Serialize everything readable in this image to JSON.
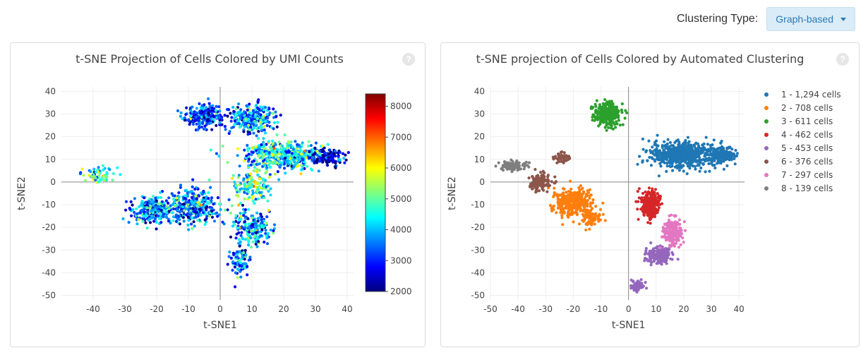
{
  "controls": {
    "clustering_label": "Clustering Type:",
    "clustering_value": "Graph-based"
  },
  "help_glyph": "?",
  "chart_data": [
    {
      "type": "scatter",
      "title": "t-SNE Projection of Cells Colored by UMI Counts",
      "xlabel": "t-SNE1",
      "ylabel": "t-SNE2",
      "xlim": [
        -50,
        42
      ],
      "ylim": [
        -52,
        42
      ],
      "xticks": [
        -40,
        -30,
        -20,
        -10,
        0,
        10,
        20,
        30,
        40
      ],
      "yticks": [
        40,
        30,
        20,
        10,
        0,
        -10,
        -20,
        -30,
        -40,
        -50
      ],
      "colorbar": {
        "min": 2000,
        "max": 8400,
        "ticks": [
          8000,
          7000,
          6000,
          5000,
          4000,
          3000,
          2000
        ],
        "colorscale": [
          "#00007f",
          "#0000ff",
          "#007fff",
          "#00ffff",
          "#7fff7f",
          "#ffff00",
          "#ff7f00",
          "#ff0000",
          "#7f0000"
        ]
      },
      "clusters": [
        {
          "x": 10,
          "y": 28,
          "sx": 6,
          "sy": 5,
          "n": 260,
          "umi": 3600
        },
        {
          "x": 20,
          "y": 12,
          "sx": 11,
          "sy": 5,
          "n": 500,
          "umi": 4200
        },
        {
          "x": 34,
          "y": 11,
          "sx": 4,
          "sy": 3,
          "n": 120,
          "umi": 2400
        },
        {
          "x": -8,
          "y": -11,
          "sx": 6,
          "sy": 6,
          "n": 300,
          "umi": 3500
        },
        {
          "x": -21,
          "y": -12,
          "sx": 6,
          "sy": 5,
          "n": 250,
          "umi": 3700
        },
        {
          "x": -5,
          "y": 29,
          "sx": 5,
          "sy": 4,
          "n": 240,
          "umi": 3300
        },
        {
          "x": -38,
          "y": 3,
          "sx": 4,
          "sy": 3,
          "n": 60,
          "umi": 4600
        },
        {
          "x": 10,
          "y": -2,
          "sx": 5,
          "sy": 6,
          "n": 150,
          "umi": 4800
        },
        {
          "x": 10,
          "y": -20,
          "sx": 5,
          "sy": 6,
          "n": 200,
          "umi": 3800
        },
        {
          "x": 6,
          "y": -35,
          "sx": 3,
          "sy": 5,
          "n": 80,
          "umi": 3500
        }
      ]
    },
    {
      "type": "scatter",
      "title": "t-SNE projection of Cells Colored by Automated Clustering",
      "xlabel": "t-SNE1",
      "ylabel": "t-SNE2",
      "xlim": [
        -50,
        42
      ],
      "ylim": [
        -52,
        42
      ],
      "xticks": [
        -50,
        -40,
        -30,
        -20,
        -10,
        0,
        10,
        20,
        30,
        40
      ],
      "yticks": [
        40,
        30,
        20,
        10,
        0,
        -10,
        -20,
        -30,
        -40,
        -50
      ],
      "legend": "right",
      "series": [
        {
          "name": "1 - 1,294 cells",
          "color": "#1f77b4",
          "count": 1294,
          "clusters": [
            {
              "x": 19,
              "y": 12,
              "sx": 10,
              "sy": 5,
              "n": 600
            },
            {
              "x": 34,
              "y": 12,
              "sx": 4,
              "sy": 3,
              "n": 160
            }
          ]
        },
        {
          "name": "2 - 708 cells",
          "color": "#ff7f0e",
          "count": 708,
          "clusters": [
            {
              "x": -20,
              "y": -9,
              "sx": 6,
              "sy": 5,
              "n": 360
            },
            {
              "x": -14,
              "y": -16,
              "sx": 3,
              "sy": 3,
              "n": 80
            }
          ]
        },
        {
          "name": "3 - 611 cells",
          "color": "#2ca02c",
          "count": 611,
          "clusters": [
            {
              "x": -8,
              "y": 30,
              "sx": 4,
              "sy": 4,
              "n": 320
            }
          ]
        },
        {
          "name": "4 - 462 cells",
          "color": "#d62728",
          "count": 462,
          "clusters": [
            {
              "x": 8,
              "y": -10,
              "sx": 3,
              "sy": 5,
              "n": 260
            }
          ]
        },
        {
          "name": "5 - 453 cells",
          "color": "#9467bd",
          "count": 453,
          "clusters": [
            {
              "x": 11,
              "y": -32,
              "sx": 4,
              "sy": 3,
              "n": 180
            },
            {
              "x": 3,
              "y": -46,
              "sx": 2,
              "sy": 2,
              "n": 70
            }
          ]
        },
        {
          "name": "6 - 376 cells",
          "color": "#8c564b",
          "count": 376,
          "clusters": [
            {
              "x": -32,
              "y": 0,
              "sx": 3,
              "sy": 3,
              "n": 120
            },
            {
              "x": -24,
              "y": 11,
              "sx": 2,
              "sy": 2,
              "n": 50
            }
          ]
        },
        {
          "name": "7 - 297 cells",
          "color": "#e377c2",
          "count": 297,
          "clusters": [
            {
              "x": 16,
              "y": -22,
              "sx": 3,
              "sy": 5,
              "n": 200
            }
          ]
        },
        {
          "name": "8 - 139 cells",
          "color": "#7f7f7f",
          "count": 139,
          "clusters": [
            {
              "x": -42,
              "y": 7,
              "sx": 4,
              "sy": 2,
              "n": 90
            }
          ]
        }
      ]
    }
  ]
}
